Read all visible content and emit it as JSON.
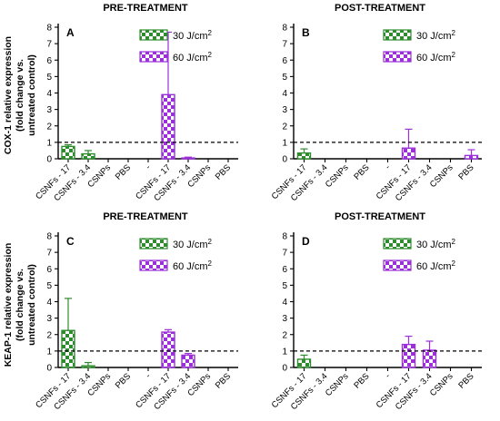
{
  "colors": {
    "green": "#2e8b2e",
    "purple": "#9b30d9"
  },
  "y_axis_labels": [
    [
      "COX-1 relative expression",
      "(fold change vs.",
      "untreated control)"
    ],
    [
      "KEAP-1 relative expression",
      "(fold change vs.",
      "untreated control)"
    ]
  ],
  "legend": {
    "series30_base": "30 J/cm",
    "series30_sup": "2",
    "series60_base": "60 J/cm",
    "series60_sup": "2"
  },
  "chart_data": [
    {
      "type": "bar",
      "letter": "A",
      "title": "PRE-TREATMENT",
      "categories": [
        "CSNFs - 17",
        "CSNFs - 3.4",
        "CSNPs",
        "PBS",
        "-",
        "CSNFs - 17",
        "CSNFs - 3.4",
        "CSNPs",
        "PBS"
      ],
      "ylim": [
        0,
        8
      ],
      "yticks": [
        0,
        1,
        2,
        3,
        4,
        5,
        6,
        7,
        8
      ],
      "reference_line": 1,
      "series": [
        {
          "name": "30 J/cm2",
          "color": "green",
          "positions": [
            0,
            1,
            2,
            3
          ],
          "values": [
            0.75,
            0.3,
            0,
            0
          ],
          "errors": [
            0.1,
            0.2,
            0,
            0
          ]
        },
        {
          "name": "60 J/cm2",
          "color": "purple",
          "positions": [
            5,
            6,
            7,
            8
          ],
          "values": [
            3.9,
            0.05,
            0,
            0
          ],
          "errors": [
            3.8,
            0.05,
            0,
            0
          ]
        }
      ]
    },
    {
      "type": "bar",
      "letter": "B",
      "title": "POST-TREATMENT",
      "categories": [
        "CSNFs - 17",
        "CSNFs - 3.4",
        "CSNPs",
        "PBS",
        "-",
        "CSNFs - 17",
        "CSNFs - 3.4",
        "CSNPs",
        "PBS"
      ],
      "ylim": [
        0,
        8
      ],
      "yticks": [
        0,
        1,
        2,
        3,
        4,
        5,
        6,
        7,
        8
      ],
      "reference_line": 1,
      "series": [
        {
          "name": "30 J/cm2",
          "color": "green",
          "positions": [
            0,
            1,
            2,
            3
          ],
          "values": [
            0.35,
            0,
            0,
            0
          ],
          "errors": [
            0.25,
            0,
            0,
            0
          ]
        },
        {
          "name": "60 J/cm2",
          "color": "purple",
          "positions": [
            5,
            6,
            7,
            8
          ],
          "values": [
            0.65,
            0,
            0,
            0.2
          ],
          "errors": [
            1.15,
            0,
            0,
            0.35
          ]
        }
      ]
    },
    {
      "type": "bar",
      "letter": "C",
      "title": "PRE-TREATMENT",
      "categories": [
        "CSNFs - 17",
        "CSNFs - 3.4",
        "CSNPs",
        "PBS",
        "-",
        "CSNFs - 17",
        "CSNFs - 3.4",
        "CSNPs",
        "PBS"
      ],
      "ylim": [
        0,
        8
      ],
      "yticks": [
        0,
        1,
        2,
        3,
        4,
        5,
        6,
        7,
        8
      ],
      "reference_line": 1,
      "series": [
        {
          "name": "30 J/cm2",
          "color": "green",
          "positions": [
            0,
            1,
            2,
            3
          ],
          "values": [
            2.25,
            0.1,
            0,
            0
          ],
          "errors": [
            1.95,
            0.2,
            0,
            0
          ]
        },
        {
          "name": "60 J/cm2",
          "color": "purple",
          "positions": [
            5,
            6,
            7,
            8
          ],
          "values": [
            2.15,
            0.75,
            0,
            0
          ],
          "errors": [
            0.15,
            0.1,
            0,
            0
          ]
        }
      ]
    },
    {
      "type": "bar",
      "letter": "D",
      "title": "POST-TREATMENT",
      "categories": [
        "CSNFs - 17",
        "CSNFs - 3.4",
        "CSNPs",
        "PBS",
        "-",
        "CSNFs - 17",
        "CSNFs - 3.4",
        "CSNPs",
        "PBS"
      ],
      "ylim": [
        0,
        8
      ],
      "yticks": [
        0,
        1,
        2,
        3,
        4,
        5,
        6,
        7,
        8
      ],
      "reference_line": 1,
      "series": [
        {
          "name": "30 J/cm2",
          "color": "green",
          "positions": [
            0,
            1,
            2,
            3
          ],
          "values": [
            0.5,
            0,
            0,
            0
          ],
          "errors": [
            0.25,
            0,
            0,
            0
          ]
        },
        {
          "name": "60 J/cm2",
          "color": "purple",
          "positions": [
            5,
            6,
            7,
            8
          ],
          "values": [
            1.4,
            1.05,
            0,
            0
          ],
          "errors": [
            0.5,
            0.55,
            0,
            0
          ]
        }
      ]
    }
  ]
}
